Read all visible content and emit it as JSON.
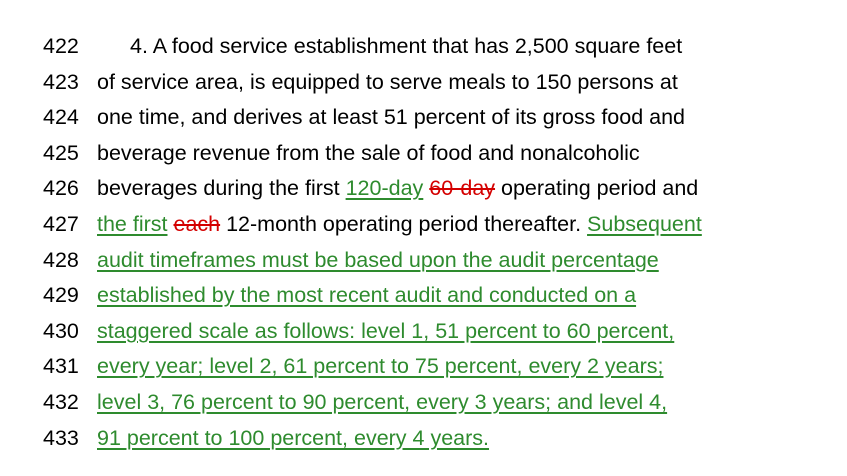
{
  "lines": [
    {
      "num": "422",
      "indent": true,
      "segments": [
        {
          "text": "4. A food service establishment that has 2,500 square feet",
          "style": "plain"
        }
      ]
    },
    {
      "num": "423",
      "segments": [
        {
          "text": "of service area, is equipped to serve meals to 150 persons at",
          "style": "plain"
        }
      ]
    },
    {
      "num": "424",
      "segments": [
        {
          "text": "one time, and derives at least 51 percent of its gross food and",
          "style": "plain"
        }
      ]
    },
    {
      "num": "425",
      "segments": [
        {
          "text": "beverage revenue from the sale of food and nonalcoholic",
          "style": "plain"
        }
      ]
    },
    {
      "num": "426",
      "segments": [
        {
          "text": "beverages during the first ",
          "style": "plain"
        },
        {
          "text": "120-day",
          "style": "ins"
        },
        {
          "text": " ",
          "style": "plain"
        },
        {
          "text": "60-day",
          "style": "del"
        },
        {
          "text": " operating period and",
          "style": "plain"
        }
      ]
    },
    {
      "num": "427",
      "segments": [
        {
          "text": "the first",
          "style": "ins"
        },
        {
          "text": " ",
          "style": "plain"
        },
        {
          "text": "each",
          "style": "del"
        },
        {
          "text": " 12-month operating period thereafter. ",
          "style": "plain"
        },
        {
          "text": "Subsequent",
          "style": "ins"
        }
      ]
    },
    {
      "num": "428",
      "segments": [
        {
          "text": "audit timeframes must be based upon the audit percentage",
          "style": "ins"
        }
      ]
    },
    {
      "num": "429",
      "segments": [
        {
          "text": "established by the most recent audit and conducted on a",
          "style": "ins"
        }
      ]
    },
    {
      "num": "430",
      "segments": [
        {
          "text": "staggered scale as follows: level 1, 51 percent to 60 percent,",
          "style": "ins"
        }
      ]
    },
    {
      "num": "431",
      "segments": [
        {
          "text": "every year; level 2, 61 percent to 75 percent, every 2 years;",
          "style": "ins"
        }
      ]
    },
    {
      "num": "432",
      "segments": [
        {
          "text": "level 3, 76 percent to 90 percent, every 3 years; and level 4,",
          "style": "ins"
        }
      ]
    },
    {
      "num": "433",
      "segments": [
        {
          "text": "91 percent to 100 percent, every 4 years.",
          "style": "ins"
        }
      ]
    }
  ],
  "colors": {
    "inserted": "#2e8b2e",
    "deleted": "#d40000",
    "text": "#000000"
  }
}
